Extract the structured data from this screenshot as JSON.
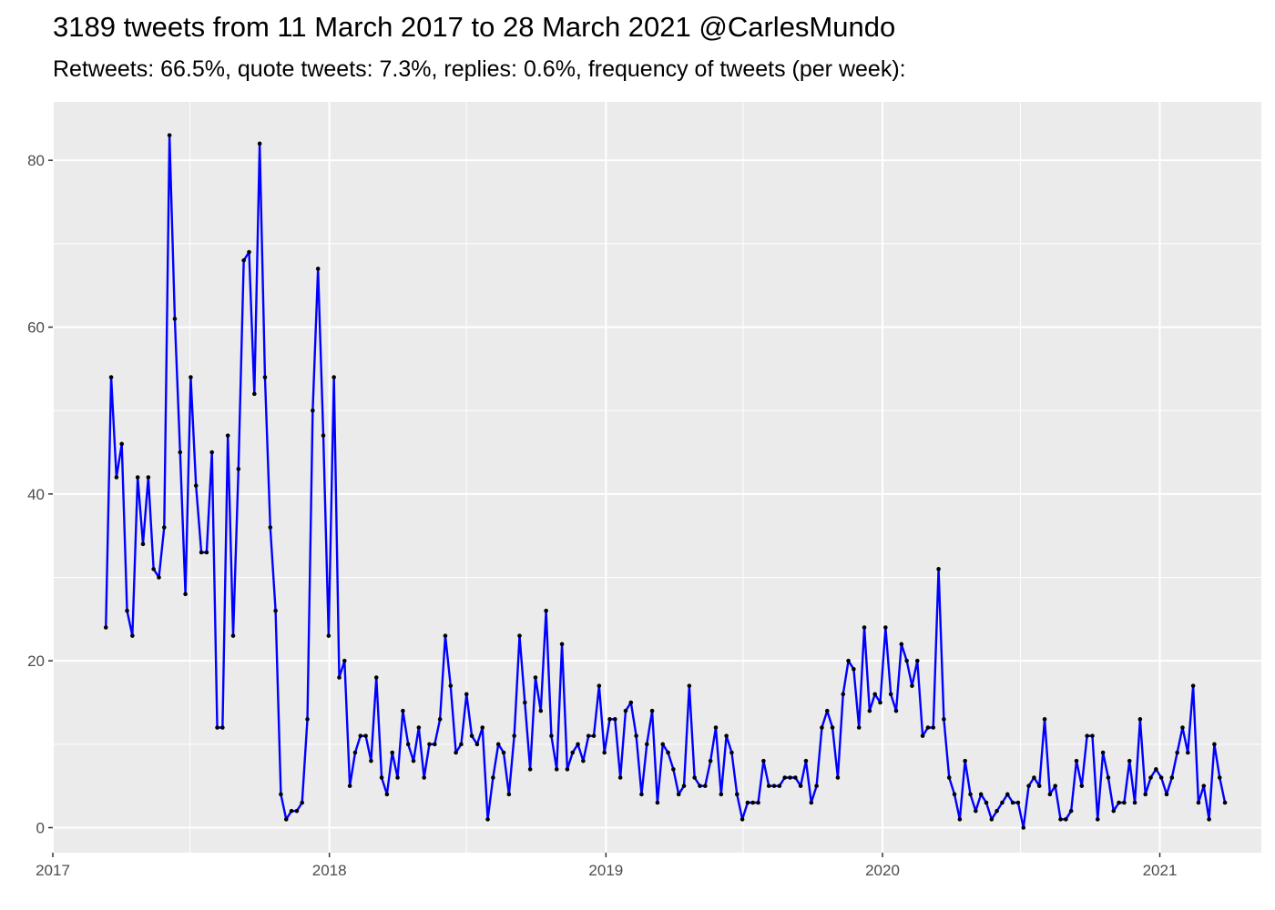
{
  "chart_data": {
    "type": "line",
    "title": "3189 tweets from 11 March 2017 to 28 March 2021 @CarlesMundo",
    "subtitle": "Retweets: 66.5%, quote tweets: 7.3%, replies: 0.6%, frequency of tweets (per week):",
    "xlabel": "",
    "ylabel": "",
    "xlim": [
      "2017-01-01",
      "2021-05-15"
    ],
    "ylim": [
      -3,
      87
    ],
    "x_ticks": [
      "2017",
      "2018",
      "2019",
      "2020",
      "2021"
    ],
    "y_ticks": [
      0,
      20,
      40,
      60,
      80
    ],
    "grid": true,
    "legend": "none",
    "colors": {
      "line": "#0000ff",
      "point": "#000000",
      "panel": "#ebebeb",
      "grid": "#ffffff"
    },
    "x_start": "2017-03-12",
    "x_interval": "1 week",
    "series": [
      {
        "values": [
          24,
          54,
          42,
          46,
          26,
          23,
          42,
          34,
          42,
          31,
          30,
          36,
          83,
          61,
          45,
          28,
          54,
          41,
          33,
          33,
          45,
          12,
          12,
          47,
          23,
          43,
          68,
          69,
          52,
          82,
          54,
          36,
          26,
          4,
          1,
          2,
          2,
          3,
          13,
          50,
          67,
          47,
          23,
          54,
          18,
          20,
          5,
          9,
          11,
          11,
          8,
          18,
          6,
          4,
          9,
          6,
          14,
          10,
          8,
          12,
          6,
          10,
          10,
          13,
          23,
          17,
          9,
          10,
          16,
          11,
          10,
          12,
          1,
          6,
          10,
          9,
          4,
          11,
          23,
          15,
          7,
          18,
          14,
          26,
          11,
          7,
          22,
          7,
          9,
          10,
          8,
          11,
          11,
          17,
          9,
          13,
          13,
          6,
          14,
          15,
          11,
          4,
          10,
          14,
          3,
          10,
          9,
          7,
          4,
          5,
          17,
          6,
          5,
          5,
          8,
          12,
          4,
          11,
          9,
          4,
          1,
          3,
          3,
          3,
          8,
          5,
          5,
          5,
          6,
          6,
          6,
          5,
          8,
          3,
          5,
          12,
          14,
          12,
          6,
          16,
          20,
          19,
          12,
          24,
          14,
          16,
          15,
          24,
          16,
          14,
          22,
          20,
          17,
          20,
          11,
          12,
          12,
          31,
          13,
          6,
          4,
          1,
          8,
          4,
          2,
          4,
          3,
          1,
          2,
          3,
          4,
          3,
          3,
          0,
          5,
          6,
          5,
          13,
          4,
          5,
          1,
          1,
          2,
          8,
          5,
          11,
          11,
          1,
          9,
          6,
          2,
          3,
          3,
          8,
          3,
          13,
          4,
          6,
          7,
          6,
          4,
          6,
          9,
          12,
          9,
          17,
          3,
          5,
          1,
          10,
          6,
          3
        ]
      }
    ]
  }
}
